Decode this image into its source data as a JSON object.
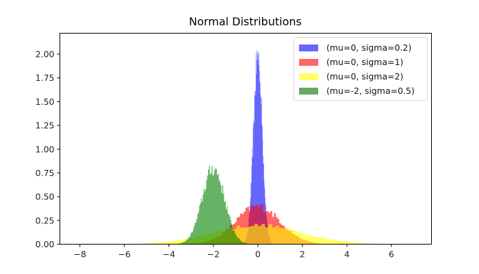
{
  "chart_data": {
    "type": "histogram",
    "title": "Normal Distributions",
    "xlabel": "",
    "ylabel": "",
    "xlim": [
      -8.9,
      7.8
    ],
    "ylim": [
      0,
      2.22
    ],
    "x_ticks": [
      -8,
      -6,
      -4,
      -2,
      0,
      2,
      4,
      6
    ],
    "x_tick_labels": [
      "−8",
      "−6",
      "−4",
      "−2",
      "0",
      "2",
      "4",
      "6"
    ],
    "y_ticks": [
      0,
      0.25,
      0.5,
      0.75,
      1.0,
      1.25,
      1.5,
      1.75,
      2.0
    ],
    "y_tick_labels": [
      "0.00",
      "0.25",
      "0.50",
      "0.75",
      "1.00",
      "1.25",
      "1.50",
      "1.75",
      "2.00"
    ],
    "grid": false,
    "legend_position": "upper right",
    "density": true,
    "series": [
      {
        "name": "(mu=0, sigma=0.2)",
        "mu": 0,
        "sigma": 0.2,
        "color": "#0000ff",
        "alpha": 0.6,
        "peak_density": 2.0
      },
      {
        "name": "(mu=0, sigma=1)",
        "mu": 0,
        "sigma": 1,
        "color": "#ff0000",
        "alpha": 0.6,
        "peak_density": 0.4
      },
      {
        "name": "(mu=0, sigma=2)",
        "mu": 0,
        "sigma": 2,
        "color": "#ffff00",
        "alpha": 0.6,
        "peak_density": 0.2
      },
      {
        "name": "(mu=-2, sigma=0.5)",
        "mu": -2,
        "sigma": 0.5,
        "color": "#008000",
        "alpha": 0.6,
        "peak_density": 0.8
      }
    ]
  },
  "legend": {
    "items": [
      {
        "label": "(mu=0, sigma=0.2)",
        "color": "#6666ff"
      },
      {
        "label": "(mu=0, sigma=1)",
        "color": "#ff6666"
      },
      {
        "label": "(mu=0, sigma=2)",
        "color": "#ffff66"
      },
      {
        "label": "(mu=-2, sigma=0.5)",
        "color": "#66a866"
      }
    ]
  }
}
